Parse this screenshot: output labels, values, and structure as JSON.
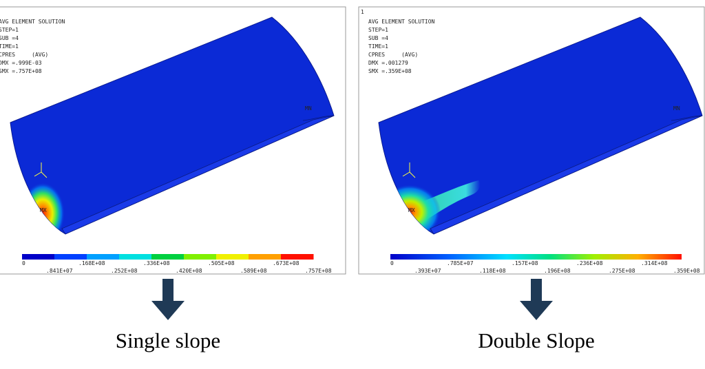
{
  "panels": [
    {
      "info": [
        "AVG ELEMENT SOLUTION",
        "STEP=1",
        "SUB =4",
        "TIME=1",
        "CPRES     (AVG)",
        "DMX =.999E-03",
        "SMX =.757E+08"
      ],
      "min_label": "MN",
      "max_label": "MX",
      "legend": [
        "0",
        ".841E+07",
        ".168E+08",
        ".252E+08",
        ".336E+08",
        ".420E+08",
        ".505E+08",
        ".589E+08",
        ".673E+08",
        ".757E+08"
      ],
      "caption": "Single slope"
    },
    {
      "corner_mark": "1",
      "info": [
        "AVG ELEMENT SOLUTION",
        "STEP=1",
        "SUB =4",
        "TIME=1",
        "CPRES     (AVG)",
        "DMX =.001279",
        "SMX =.359E+08"
      ],
      "min_label": "MN",
      "max_label": "MX",
      "legend": [
        "0",
        ".393E+07",
        ".785E+07",
        ".118E+08",
        ".157E+08",
        ".196E+08",
        ".236E+08",
        ".275E+08",
        ".314E+08",
        ".359E+08"
      ],
      "caption": "Double Slope"
    }
  ]
}
